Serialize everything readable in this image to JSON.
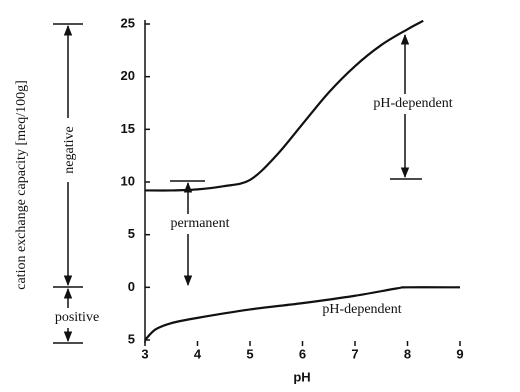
{
  "chart_data": {
    "type": "line",
    "x_label": "pH",
    "y_label": "cation exchange capacity [meq/100g]",
    "annotations": [
      "negative",
      "positive",
      "permanent",
      "pH-dependent",
      "pH-dependent"
    ],
    "xlim": [
      3,
      9
    ],
    "xticks": [
      3,
      4,
      5,
      6,
      7,
      8,
      9
    ],
    "ylim": [
      -5,
      25
    ],
    "yticks": [
      {
        "value": -5,
        "label": "5"
      },
      0,
      5,
      10,
      15,
      20,
      25
    ],
    "series": [
      {
        "color": "#111111",
        "x": [
          3,
          3.5,
          4,
          4.5,
          5,
          5.5,
          6,
          6.5,
          7,
          7.5,
          8,
          8.3
        ],
        "values": [
          9.2,
          9.2,
          9.3,
          9.6,
          10.2,
          12.5,
          15.5,
          18.5,
          21,
          23,
          24.5,
          25.3
        ]
      },
      {
        "color": "#111111",
        "x": [
          3,
          3.2,
          3.5,
          4,
          5,
          6,
          7,
          7.8,
          8,
          9
        ],
        "values": [
          -5,
          -4,
          -3.4,
          -2.9,
          -2.1,
          -1.5,
          -0.8,
          -0.1,
          0,
          0
        ]
      }
    ]
  }
}
